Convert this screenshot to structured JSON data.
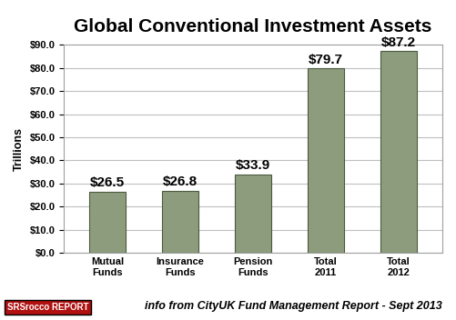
{
  "chart_data": {
    "type": "bar",
    "title": "Global Conventional Investment Assets",
    "y_label": "Trillions",
    "categories": [
      "Mutual Funds",
      "Insurance Funds",
      "Pension Funds",
      "Total 2011",
      "Total 2012"
    ],
    "values": [
      26.5,
      26.8,
      33.9,
      79.7,
      87.2
    ],
    "value_labels": [
      "$26.5",
      "$26.8",
      "$33.9",
      "$79.7",
      "$87.2"
    ],
    "data_labels": true,
    "color": "#8c9c7c",
    "ylim": [
      0,
      90
    ],
    "yticks": [
      {
        "value": 0,
        "label": "$0.0"
      },
      {
        "value": 10,
        "label": "$10.0"
      },
      {
        "value": 20,
        "label": "$20.0"
      },
      {
        "value": 30,
        "label": "$30.0"
      },
      {
        "value": 40,
        "label": "$40.0"
      },
      {
        "value": 50,
        "label": "$50.0"
      },
      {
        "value": 60,
        "label": "$60.0"
      },
      {
        "value": 70,
        "label": "$70.0"
      },
      {
        "value": 80,
        "label": "$80.0"
      },
      {
        "value": 90,
        "label": "$90.0"
      }
    ],
    "grid": true,
    "annotations": [
      "info from CityUK Fund Management Report - Sept 2013",
      "SRSrocco REPORT"
    ]
  }
}
